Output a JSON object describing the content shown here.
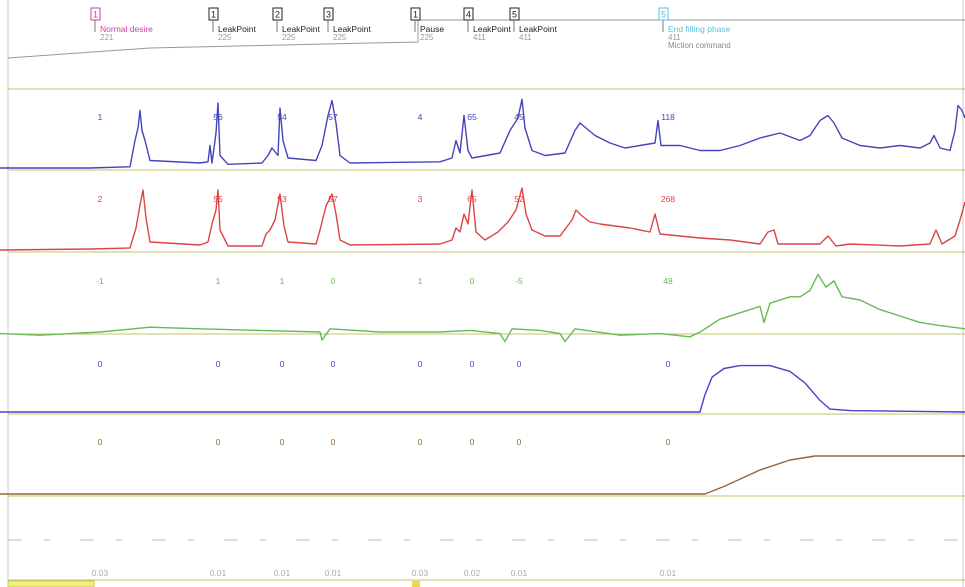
{
  "chart_data": {
    "type": "line",
    "events": [
      {
        "marker": "1",
        "label": "Normal desire",
        "value": "221",
        "color": "#d33ba8"
      },
      {
        "marker": "1",
        "label": "LeakPoint",
        "value": "225",
        "color": "#333333"
      },
      {
        "marker": "2",
        "label": "LeakPoint",
        "value": "225",
        "color": "#333333"
      },
      {
        "marker": "3",
        "label": "LeakPoint",
        "value": "225",
        "color": "#333333"
      },
      {
        "marker": "1",
        "label": "Pause",
        "value": "225",
        "color": "#333333"
      },
      {
        "marker": "4",
        "label": "LeakPoint",
        "value": "411",
        "color": "#333333"
      },
      {
        "marker": "5",
        "label": "LeakPoint",
        "value": "411",
        "color": "#333333"
      },
      {
        "marker": "5",
        "label": "End filling phase",
        "value": "411",
        "color": "#5bc0de",
        "extra": "Miction command"
      }
    ],
    "channels": [
      {
        "color": "#4444bb",
        "labels": [
          "1",
          "56",
          "54",
          "57",
          "4",
          "65",
          "45",
          "118"
        ],
        "series": [
          [
            0,
            0
          ],
          [
            90,
            0
          ],
          [
            130,
            1
          ],
          [
            135,
            22
          ],
          [
            138,
            32
          ],
          [
            140,
            46
          ],
          [
            142,
            30
          ],
          [
            145,
            22
          ],
          [
            150,
            6
          ],
          [
            200,
            4
          ],
          [
            208,
            5
          ],
          [
            210,
            18
          ],
          [
            212,
            4
          ],
          [
            216,
            28
          ],
          [
            218,
            52
          ],
          [
            220,
            10
          ],
          [
            228,
            3
          ],
          [
            262,
            4
          ],
          [
            268,
            10
          ],
          [
            272,
            16
          ],
          [
            278,
            10
          ],
          [
            280,
            48
          ],
          [
            283,
            22
          ],
          [
            288,
            8
          ],
          [
            316,
            6
          ],
          [
            322,
            18
          ],
          [
            328,
            42
          ],
          [
            332,
            54
          ],
          [
            336,
            36
          ],
          [
            340,
            10
          ],
          [
            350,
            4
          ],
          [
            440,
            5
          ],
          [
            452,
            8
          ],
          [
            456,
            22
          ],
          [
            460,
            12
          ],
          [
            464,
            42
          ],
          [
            468,
            14
          ],
          [
            472,
            8
          ],
          [
            500,
            12
          ],
          [
            510,
            30
          ],
          [
            518,
            40
          ],
          [
            522,
            55
          ],
          [
            525,
            32
          ],
          [
            532,
            14
          ],
          [
            545,
            10
          ],
          [
            565,
            12
          ],
          [
            575,
            30
          ],
          [
            580,
            36
          ],
          [
            586,
            32
          ],
          [
            595,
            26
          ],
          [
            610,
            20
          ],
          [
            625,
            16
          ],
          [
            640,
            18
          ],
          [
            655,
            20
          ],
          [
            658,
            38
          ],
          [
            661,
            18
          ],
          [
            680,
            18
          ],
          [
            700,
            14
          ],
          [
            720,
            14
          ],
          [
            740,
            18
          ],
          [
            760,
            24
          ],
          [
            780,
            28
          ],
          [
            800,
            22
          ],
          [
            810,
            26
          ],
          [
            820,
            38
          ],
          [
            828,
            42
          ],
          [
            834,
            36
          ],
          [
            842,
            24
          ],
          [
            860,
            18
          ],
          [
            880,
            16
          ],
          [
            900,
            18
          ],
          [
            920,
            16
          ],
          [
            930,
            20
          ],
          [
            934,
            26
          ],
          [
            940,
            16
          ],
          [
            950,
            14
          ],
          [
            955,
            30
          ],
          [
            958,
            50
          ],
          [
            962,
            46
          ],
          [
            965,
            40
          ]
        ]
      },
      {
        "color": "#dd4444",
        "labels": [
          "2",
          "55",
          "53",
          "57",
          "3",
          "65",
          "52",
          "268"
        ],
        "series": [
          [
            0,
            0
          ],
          [
            90,
            1
          ],
          [
            130,
            2
          ],
          [
            136,
            22
          ],
          [
            140,
            45
          ],
          [
            143,
            60
          ],
          [
            146,
            32
          ],
          [
            150,
            8
          ],
          [
            200,
            5
          ],
          [
            208,
            8
          ],
          [
            212,
            26
          ],
          [
            216,
            40
          ],
          [
            218,
            60
          ],
          [
            220,
            20
          ],
          [
            228,
            4
          ],
          [
            262,
            4
          ],
          [
            266,
            16
          ],
          [
            270,
            20
          ],
          [
            275,
            30
          ],
          [
            280,
            56
          ],
          [
            284,
            24
          ],
          [
            288,
            8
          ],
          [
            316,
            6
          ],
          [
            320,
            20
          ],
          [
            326,
            44
          ],
          [
            332,
            56
          ],
          [
            336,
            36
          ],
          [
            340,
            10
          ],
          [
            350,
            5
          ],
          [
            440,
            6
          ],
          [
            452,
            10
          ],
          [
            456,
            22
          ],
          [
            460,
            18
          ],
          [
            464,
            36
          ],
          [
            468,
            26
          ],
          [
            472,
            60
          ],
          [
            476,
            18
          ],
          [
            485,
            10
          ],
          [
            498,
            18
          ],
          [
            508,
            28
          ],
          [
            516,
            40
          ],
          [
            522,
            62
          ],
          [
            526,
            36
          ],
          [
            532,
            20
          ],
          [
            545,
            14
          ],
          [
            560,
            14
          ],
          [
            572,
            30
          ],
          [
            576,
            40
          ],
          [
            582,
            34
          ],
          [
            590,
            28
          ],
          [
            600,
            26
          ],
          [
            630,
            22
          ],
          [
            650,
            18
          ],
          [
            655,
            36
          ],
          [
            660,
            16
          ],
          [
            680,
            14
          ],
          [
            700,
            12
          ],
          [
            730,
            10
          ],
          [
            760,
            6
          ],
          [
            768,
            18
          ],
          [
            774,
            20
          ],
          [
            778,
            6
          ],
          [
            790,
            6
          ],
          [
            820,
            6
          ],
          [
            828,
            14
          ],
          [
            836,
            4
          ],
          [
            850,
            6
          ],
          [
            900,
            4
          ],
          [
            930,
            6
          ],
          [
            936,
            20
          ],
          [
            942,
            6
          ],
          [
            955,
            14
          ],
          [
            960,
            30
          ],
          [
            965,
            48
          ]
        ]
      },
      {
        "color": "#66bb55",
        "labels": [
          "-1",
          "1",
          "1",
          "0",
          "1",
          "0",
          "-5",
          "48"
        ],
        "series": [
          [
            0,
            -1
          ],
          [
            40,
            -2
          ],
          [
            100,
            0
          ],
          [
            150,
            3
          ],
          [
            200,
            2
          ],
          [
            260,
            1
          ],
          [
            320,
            0
          ],
          [
            322,
            -5
          ],
          [
            330,
            2
          ],
          [
            380,
            0
          ],
          [
            440,
            0
          ],
          [
            470,
            1
          ],
          [
            500,
            -1
          ],
          [
            505,
            -6
          ],
          [
            512,
            2
          ],
          [
            540,
            1
          ],
          [
            560,
            -1
          ],
          [
            565,
            -6
          ],
          [
            575,
            2
          ],
          [
            620,
            -2
          ],
          [
            660,
            -1
          ],
          [
            690,
            -3
          ],
          [
            700,
            0
          ],
          [
            720,
            8
          ],
          [
            740,
            12
          ],
          [
            760,
            16
          ],
          [
            764,
            6
          ],
          [
            770,
            18
          ],
          [
            790,
            22
          ],
          [
            800,
            22
          ],
          [
            810,
            26
          ],
          [
            818,
            36
          ],
          [
            826,
            28
          ],
          [
            834,
            32
          ],
          [
            842,
            22
          ],
          [
            860,
            20
          ],
          [
            880,
            14
          ],
          [
            900,
            10
          ],
          [
            920,
            6
          ],
          [
            940,
            4
          ],
          [
            965,
            2
          ]
        ]
      },
      {
        "color": "#4444cc",
        "labels": [
          "0",
          "0",
          "0",
          "0",
          "0",
          "0",
          "0",
          "0"
        ],
        "series": [
          [
            0,
            0
          ],
          [
            700,
            0
          ],
          [
            705,
            12
          ],
          [
            712,
            24
          ],
          [
            724,
            30
          ],
          [
            740,
            32
          ],
          [
            770,
            32
          ],
          [
            790,
            28
          ],
          [
            805,
            20
          ],
          [
            820,
            8
          ],
          [
            830,
            2
          ],
          [
            850,
            1
          ],
          [
            965,
            0
          ]
        ]
      },
      {
        "color": "#996633",
        "labels": [
          "0",
          "0",
          "0",
          "0",
          "0",
          "0",
          "0",
          "0"
        ],
        "series": [
          [
            0,
            0
          ],
          [
            705,
            0
          ],
          [
            725,
            8
          ],
          [
            760,
            24
          ],
          [
            790,
            34
          ],
          [
            815,
            38
          ],
          [
            965,
            38
          ]
        ]
      }
    ],
    "bottom_values": [
      "0.03",
      "0.01",
      "0.01",
      "0.01",
      "0.03",
      "0.02",
      "0.01",
      "0.01"
    ]
  }
}
